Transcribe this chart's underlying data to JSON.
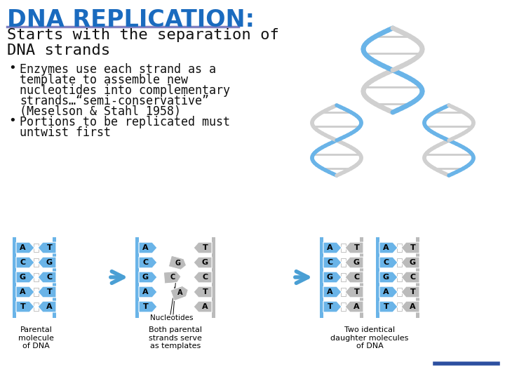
{
  "title": "DNA REPLICATION:",
  "title_color": "#1a6bbf",
  "title_fontsize": 24,
  "underline_color": "#8080c0",
  "subtitle_line1": "Starts with the separation of",
  "subtitle_line2": "DNA strands",
  "subtitle_fontsize": 16,
  "subtitle_color": "#111111",
  "bullet1_lines": [
    "Enzymes use each strand as a",
    "template to assemble new",
    "nucleotides into complementary",
    "strands…“semi-conservative”",
    "(Meselson & Stahl 1958)"
  ],
  "bullet2_lines": [
    "Portions to be replicated must",
    "untwist first"
  ],
  "bullet_fontsize": 12,
  "bullet_color": "#111111",
  "strand_blue": "#6ab4e8",
  "strand_gray": "#bbbbbb",
  "bottom_label1": "Parental\nmolecule\nof DNA",
  "bottom_label2": "Both parental\nstrands serve\nas templates",
  "bottom_label3": "Two identical\ndaughter molecules\nof DNA",
  "arrow_color": "#4a9fd4",
  "bottom_bar_color": "#2c4fa0",
  "pairs1": [
    [
      "A",
      "T"
    ],
    [
      "C",
      "G"
    ],
    [
      "G",
      "C"
    ],
    [
      "A",
      "T"
    ],
    [
      "T",
      "A"
    ]
  ]
}
